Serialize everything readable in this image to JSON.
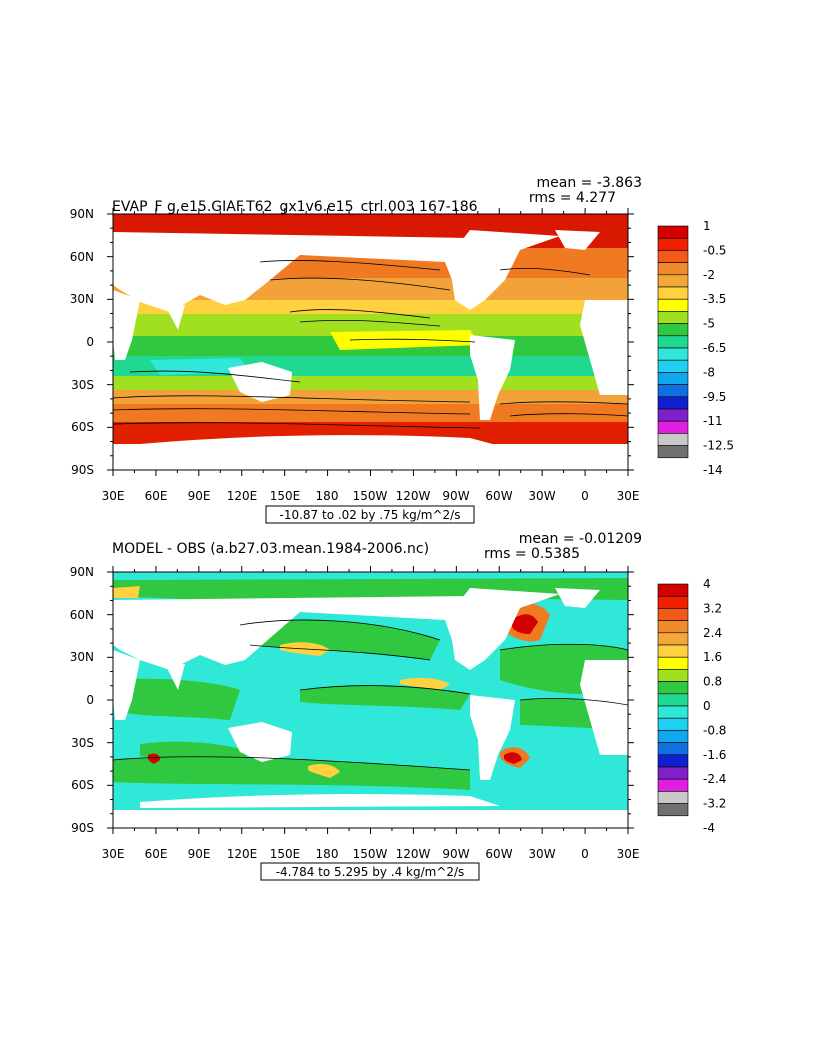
{
  "panels": [
    {
      "title": "EVAP_F g.e15.GIAF.T62_gx1v6.e15_ctrl.003 167-186",
      "mean_text": "mean = -3.863",
      "rms_text": "rms = 4.277",
      "range_text": "-10.87 to .02 by .75 kg/m^2/s"
    },
    {
      "title": "MODEL - OBS (a.b27.03.mean.1984-2006.nc)",
      "mean_text": "mean = -0.01209",
      "rms_text": "rms = 0.5385",
      "range_text": "-4.784 to 5.295 by .4 kg/m^2/s"
    }
  ],
  "chart_data": [
    {
      "type": "heatmap",
      "title": "EVAP_F g.e15.GIAF.T62_gx1v6.e15_ctrl.003 167-186",
      "x_ticks": [
        "30E",
        "60E",
        "90E",
        "120E",
        "150E",
        "180",
        "150W",
        "120W",
        "90W",
        "60W",
        "30W",
        "0",
        "30E"
      ],
      "y_ticks": [
        "90N",
        "60N",
        "30N",
        "0",
        "30S",
        "60S",
        "90S"
      ],
      "colorbar": {
        "labels": [
          "1",
          "-0.5",
          "-2",
          "-3.5",
          "-5",
          "-6.5",
          "-8",
          "-9.5",
          "-11",
          "-12.5",
          "-14"
        ],
        "colors": [
          "#d40000",
          "#ee2000",
          "#f35a1a",
          "#f08a2a",
          "#f5a83a",
          "#ffd040",
          "#ffff00",
          "#a0e020",
          "#30c840",
          "#20d890",
          "#30e8d8",
          "#20d0f0",
          "#10a8ec",
          "#1070e0",
          "#1020d0",
          "#8020c8",
          "#e020e0",
          "#c8c8c8",
          "#707070"
        ]
      },
      "stats": {
        "mean": -3.863,
        "rms": 4.277
      },
      "range": {
        "min": -10.87,
        "max": 0.02,
        "interval": 0.75,
        "units": "kg/m^2/s"
      }
    },
    {
      "type": "heatmap",
      "title": "MODEL - OBS (a.b27.03.mean.1984-2006.nc)",
      "x_ticks": [
        "30E",
        "60E",
        "90E",
        "120E",
        "150E",
        "180",
        "150W",
        "120W",
        "90W",
        "60W",
        "30W",
        "0",
        "30E"
      ],
      "y_ticks": [
        "90N",
        "60N",
        "30N",
        "0",
        "30S",
        "60S",
        "90S"
      ],
      "colorbar": {
        "labels": [
          "4",
          "3.2",
          "2.4",
          "1.6",
          "0.8",
          "0",
          "-0.8",
          "-1.6",
          "-2.4",
          "-3.2",
          "-4"
        ],
        "colors": [
          "#d40000",
          "#ee2000",
          "#f35a1a",
          "#f08a2a",
          "#f5a83a",
          "#ffd040",
          "#ffff00",
          "#a0e020",
          "#30c840",
          "#20d890",
          "#30e8d8",
          "#20d0f0",
          "#10a8ec",
          "#1070e0",
          "#1020d0",
          "#8020c8",
          "#e020e0",
          "#c8c8c8",
          "#707070"
        ]
      },
      "stats": {
        "mean": -0.01209,
        "rms": 0.5385
      },
      "range": {
        "min": -4.784,
        "max": 5.295,
        "interval": 0.4,
        "units": "kg/m^2/s"
      }
    }
  ]
}
